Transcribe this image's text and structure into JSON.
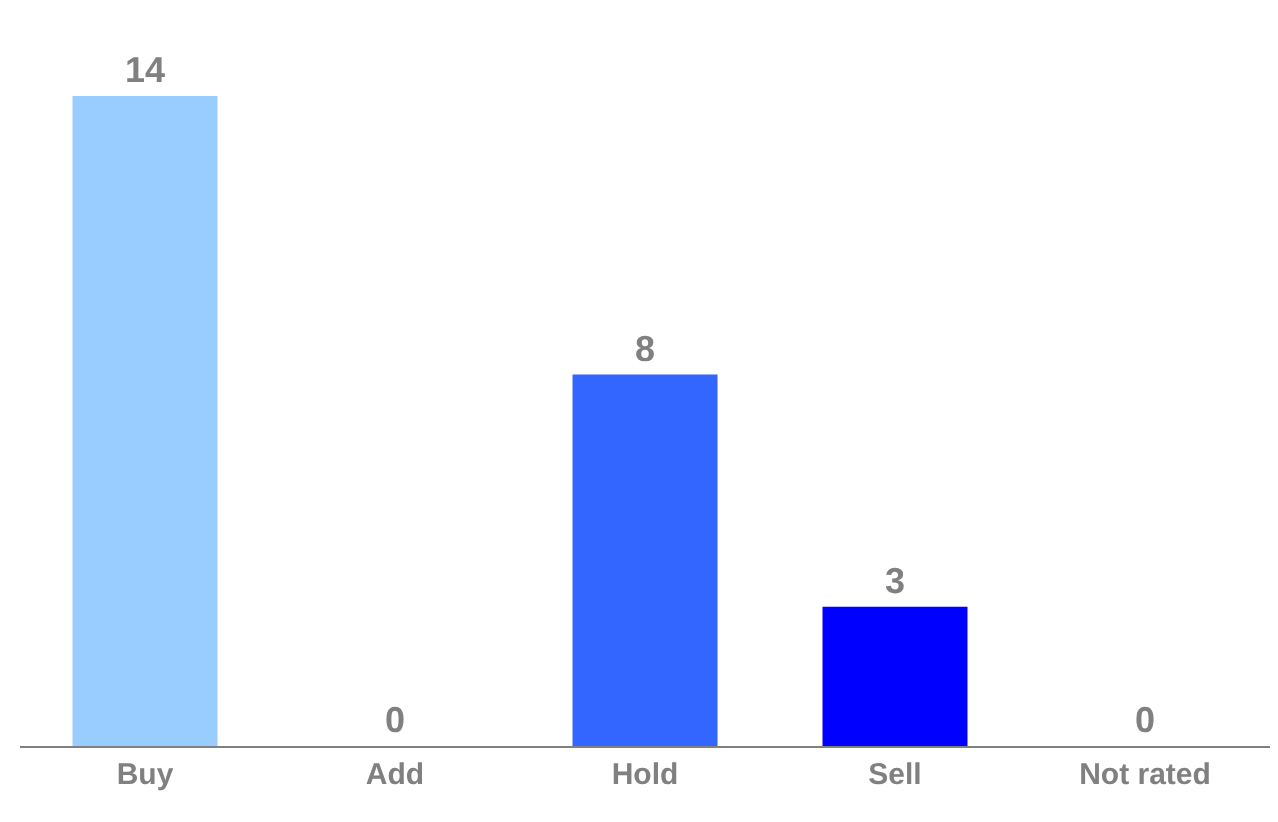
{
  "chart_data": {
    "type": "bar",
    "categories": [
      "Buy",
      "Add",
      "Hold",
      "Sell",
      "Not rated"
    ],
    "values": [
      14,
      0,
      8,
      3,
      0
    ],
    "colors": [
      "#99ccff",
      "#99ccff",
      "#3366ff",
      "#0000ff",
      "#0000ff"
    ],
    "data_labels": true
  }
}
